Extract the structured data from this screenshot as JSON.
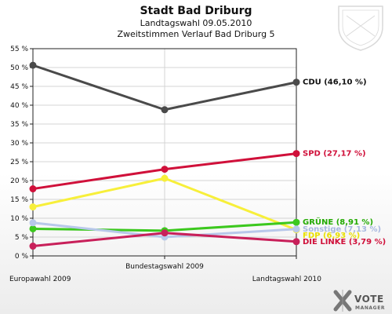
{
  "chart_data": {
    "type": "line",
    "title": "Stadt Bad Driburg",
    "subtitle": "Landtagswahl 09.05.2010",
    "subtitle2": "Zweitstimmen Verlauf Bad Driburg 5",
    "categories": [
      "Europawahl 2009",
      "Bundestagswahl 2009",
      "Landtagswahl 2010"
    ],
    "ylim": [
      0,
      55
    ],
    "y_ticks": [
      "0 %",
      "5 %",
      "10 %",
      "15 %",
      "20 %",
      "25 %",
      "30 %",
      "35 %",
      "40 %",
      "45 %",
      "50 %",
      "55 %"
    ],
    "grid": true,
    "series": [
      {
        "name": "CDU",
        "label": "CDU (46,10 %)",
        "color": "#4a4a4a",
        "label_color": "#111111",
        "values": [
          50.6,
          38.8,
          46.1
        ]
      },
      {
        "name": "SPD",
        "label": "SPD (27,17 %)",
        "color": "#d0103a",
        "label_color": "#d0103a",
        "values": [
          17.8,
          23.0,
          27.17
        ]
      },
      {
        "name": "FDP",
        "label": "FDP (6,93 %)",
        "color": "#f7ef3a",
        "label_color": "#e9df00",
        "values": [
          13.0,
          20.6,
          6.93
        ]
      },
      {
        "name": "GRÜNE",
        "label": "GRÜNE (8,91 %)",
        "color": "#3cc81e",
        "label_color": "#22aa00",
        "values": [
          7.2,
          6.7,
          8.91
        ]
      },
      {
        "name": "Sonstige",
        "label": "Sonstige (7,13 %)",
        "color": "#b8c8ea",
        "label_color": "#a8b8e0",
        "values": [
          8.8,
          5.0,
          7.13
        ]
      },
      {
        "name": "DIE LINKE",
        "label": "DIE LINKE (3,79 %)",
        "color": "#c8205a",
        "label_color": "#d0103a",
        "values": [
          2.6,
          6.1,
          3.79
        ]
      }
    ]
  },
  "branding": {
    "name": "VOTE",
    "sub": "MANAGER"
  }
}
